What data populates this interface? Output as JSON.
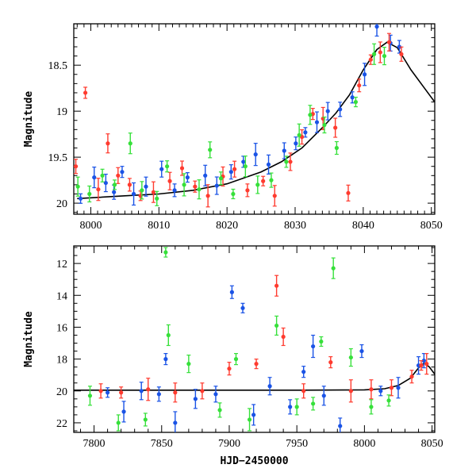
{
  "chart_data": [
    {
      "type": "scatter",
      "panel": "top",
      "title": "",
      "xlabel": "",
      "ylabel": "Magnitude",
      "xlim": [
        7997.5,
        8050.5
      ],
      "ylim": [
        20.12,
        18.05
      ],
      "y_inverted": true,
      "xticks": [
        "8000",
        "8010",
        "8020",
        "8030",
        "8040",
        "8050"
      ],
      "yticks": [
        "18.5",
        "19",
        "19.5",
        "20"
      ],
      "series": [
        {
          "color": "#1a53e6",
          "x": [
            7998.5,
            8000.5,
            8002.2,
            8003.4,
            8004.6,
            8006.3,
            8008.1,
            8010.4,
            8012.3,
            8014.2,
            8016.8,
            8018.5,
            8020.6,
            8022.4,
            8024.2,
            8026.1,
            8028.4,
            8030.1,
            8031.5,
            8033.2,
            8034.8,
            8036.6,
            8038.4,
            8040.2,
            8042.0,
            8044.0,
            8045.3
          ],
          "y": [
            19.95,
            19.72,
            19.78,
            19.88,
            19.66,
            19.9,
            19.82,
            19.63,
            19.86,
            19.72,
            19.7,
            19.81,
            19.66,
            19.55,
            19.47,
            19.58,
            19.43,
            19.35,
            19.23,
            19.12,
            19.0,
            18.98,
            18.85,
            18.6,
            18.08,
            18.26,
            18.3
          ]
        },
        {
          "color": "#ff3b2f",
          "x": [
            7997.8,
            7999.2,
            8001.1,
            8002.5,
            8004.0,
            8005.7,
            8007.3,
            8009.2,
            8011.6,
            8013.4,
            8015.3,
            8017.2,
            8019.4,
            8021.1,
            8023.0,
            8025.3,
            8027.0,
            8029.3,
            8031.0,
            8032.6,
            8034.1,
            8035.9,
            8037.8,
            8039.4,
            8041.1,
            8042.5,
            8043.8,
            8045.6
          ],
          "y": [
            19.6,
            18.8,
            19.85,
            19.35,
            19.7,
            19.8,
            19.92,
            19.88,
            19.76,
            19.62,
            19.82,
            19.92,
            19.71,
            19.63,
            19.86,
            19.76,
            19.92,
            19.55,
            19.28,
            19.03,
            19.08,
            19.18,
            19.89,
            18.72,
            18.44,
            18.36,
            18.25,
            18.38
          ]
        },
        {
          "color": "#36e03a",
          "x": [
            7998.1,
            7999.8,
            8001.7,
            8003.5,
            8005.8,
            8007.5,
            8009.7,
            8011.2,
            8013.7,
            8015.9,
            8017.5,
            8019.1,
            8020.9,
            8022.7,
            8024.5,
            8026.5,
            8028.7,
            8030.6,
            8032.2,
            8034.3,
            8036.1,
            8038.9,
            8041.6,
            8043.1
          ],
          "y": [
            19.82,
            19.9,
            19.7,
            19.8,
            19.35,
            19.86,
            19.95,
            19.6,
            19.8,
            19.85,
            19.42,
            19.73,
            19.9,
            19.6,
            19.8,
            19.75,
            19.55,
            19.26,
            19.04,
            19.15,
            19.4,
            18.9,
            18.38,
            18.4
          ]
        }
      ],
      "model_curve": {
        "x": [
          7998,
          8005,
          8010,
          8015,
          8020,
          8025,
          8028,
          8031,
          8034,
          8036,
          8038,
          8040,
          8042,
          8043.5,
          8045,
          8047,
          8049,
          8050.5
        ],
        "y": [
          19.95,
          19.92,
          19.9,
          19.86,
          19.79,
          19.66,
          19.55,
          19.4,
          19.18,
          19.02,
          18.82,
          18.55,
          18.33,
          18.25,
          18.31,
          18.55,
          18.75,
          18.9
        ]
      }
    },
    {
      "type": "scatter",
      "panel": "bottom",
      "title": "",
      "xlabel": "HJD−2450000",
      "ylabel": "Magnitude",
      "xlim": [
        7785,
        8052
      ],
      "ylim": [
        22.6,
        10.9
      ],
      "y_inverted": true,
      "xticks": [
        "7800",
        "7850",
        "7900",
        "7950",
        "8000",
        "8050"
      ],
      "yticks": [
        "12",
        "14",
        "16",
        "18",
        "20",
        "22"
      ],
      "series": [
        {
          "color": "#1a53e6",
          "x": [
            7810,
            7822,
            7835,
            7848,
            7853,
            7860,
            7875,
            7890,
            7902,
            7910,
            7918,
            7930,
            7945,
            7955,
            7962,
            7970,
            7982,
            7998,
            8012,
            8025,
            8040,
            8044
          ],
          "y": [
            20.1,
            21.3,
            20.0,
            20.2,
            18.0,
            22.0,
            20.5,
            20.2,
            13.8,
            14.8,
            21.5,
            19.7,
            21.0,
            18.8,
            17.2,
            20.3,
            22.2,
            17.5,
            20.0,
            19.8,
            18.4,
            18.1
          ]
        },
        {
          "color": "#ff3b2f",
          "x": [
            7805,
            7820,
            7840,
            7860,
            7880,
            7900,
            7920,
            7935,
            7940,
            7955,
            7975,
            7990,
            8005,
            8020,
            8035,
            8042,
            8046
          ],
          "y": [
            20.0,
            20.1,
            19.9,
            20.1,
            20.0,
            18.6,
            18.3,
            13.4,
            16.6,
            20.0,
            18.2,
            20.0,
            19.9,
            19.8,
            19.1,
            18.4,
            18.3
          ]
        },
        {
          "color": "#36e03a",
          "x": [
            7797,
            7818,
            7838,
            7853,
            7855,
            7870,
            7893,
            7905,
            7915,
            7935,
            7950,
            7962,
            7968,
            7977,
            7990,
            8005,
            8018
          ],
          "y": [
            20.3,
            22.0,
            21.8,
            11.3,
            16.5,
            18.3,
            21.2,
            18.0,
            21.8,
            15.9,
            21.0,
            20.8,
            16.9,
            12.3,
            17.9,
            21.0,
            20.6
          ]
        }
      ],
      "model_curve": {
        "x": [
          7785,
          7850,
          7900,
          7950,
          8000,
          8015,
          8025,
          8034,
          8040,
          8044,
          8048,
          8052
        ],
        "y": [
          19.95,
          19.95,
          19.95,
          19.95,
          19.93,
          19.86,
          19.66,
          19.2,
          18.55,
          18.25,
          18.5,
          18.95
        ]
      }
    }
  ]
}
